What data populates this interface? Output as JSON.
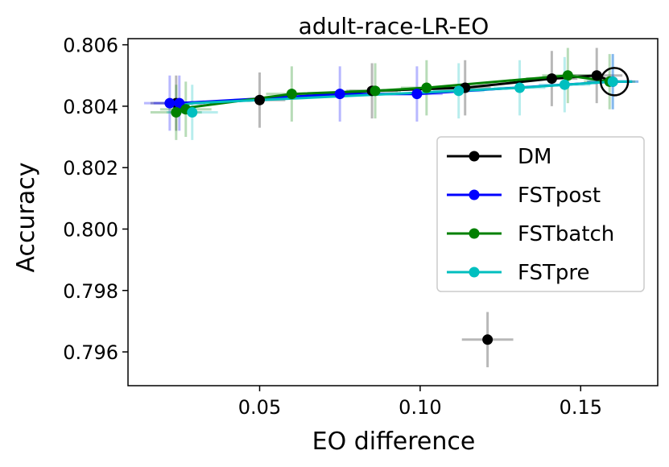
{
  "chart_data": {
    "type": "scatter",
    "title": "adult-race-LR-EO",
    "xlabel": "EO difference",
    "ylabel": "Accuracy",
    "xlim": [
      0.009,
      0.174
    ],
    "ylim": [
      0.7949,
      0.8062
    ],
    "xticks": [
      0.05,
      0.1,
      0.15
    ],
    "xtick_labels": [
      "0.05",
      "0.10",
      "0.15"
    ],
    "yticks": [
      0.796,
      0.798,
      0.8,
      0.802,
      0.804,
      0.806
    ],
    "ytick_labels": [
      "0.796",
      "0.798",
      "0.800",
      "0.802",
      "0.804",
      "0.806"
    ],
    "legend_position": "center-right",
    "series": [
      {
        "name": "DM",
        "color": "#000000",
        "points": [
          {
            "x": 0.024,
            "y": 0.8041
          },
          {
            "x": 0.05,
            "y": 0.8042
          },
          {
            "x": 0.085,
            "y": 0.8045
          },
          {
            "x": 0.114,
            "y": 0.8046
          },
          {
            "x": 0.141,
            "y": 0.8049
          },
          {
            "x": 0.155,
            "y": 0.805
          },
          {
            "x": 0.121,
            "y": 0.7964
          }
        ],
        "line": [
          [
            0.024,
            0.8041
          ],
          [
            0.05,
            0.8042
          ],
          [
            0.085,
            0.8045
          ],
          [
            0.114,
            0.8046
          ],
          [
            0.141,
            0.8049
          ],
          [
            0.155,
            0.805
          ],
          [
            0.16,
            0.8048
          ]
        ]
      },
      {
        "name": "FSTpost",
        "color": "#0000ff",
        "points": [
          {
            "x": 0.022,
            "y": 0.8041
          },
          {
            "x": 0.025,
            "y": 0.8041
          },
          {
            "x": 0.075,
            "y": 0.8044
          },
          {
            "x": 0.099,
            "y": 0.8044
          },
          {
            "x": 0.16,
            "y": 0.8048
          }
        ],
        "line": [
          [
            0.022,
            0.804
          ],
          [
            0.025,
            0.8041
          ],
          [
            0.075,
            0.8044
          ],
          [
            0.099,
            0.8044
          ],
          [
            0.16,
            0.8048
          ],
          [
            0.166,
            0.8048
          ]
        ]
      },
      {
        "name": "FSTbatch",
        "color": "#008000",
        "points": [
          {
            "x": 0.024,
            "y": 0.8038
          },
          {
            "x": 0.027,
            "y": 0.8039
          },
          {
            "x": 0.06,
            "y": 0.8044
          },
          {
            "x": 0.086,
            "y": 0.8045
          },
          {
            "x": 0.102,
            "y": 0.8046
          },
          {
            "x": 0.146,
            "y": 0.805
          },
          {
            "x": 0.159,
            "y": 0.8048
          }
        ],
        "line": [
          [
            0.024,
            0.8039
          ],
          [
            0.06,
            0.8044
          ],
          [
            0.086,
            0.8045
          ],
          [
            0.102,
            0.8046
          ],
          [
            0.146,
            0.805
          ],
          [
            0.159,
            0.8048
          ]
        ]
      },
      {
        "name": "FSTpre",
        "color": "#00bfbf",
        "points": [
          {
            "x": 0.029,
            "y": 0.8038
          },
          {
            "x": 0.112,
            "y": 0.8045
          },
          {
            "x": 0.131,
            "y": 0.8046
          },
          {
            "x": 0.145,
            "y": 0.8047
          },
          {
            "x": 0.16,
            "y": 0.8048
          }
        ],
        "line": [
          [
            0.024,
            0.804
          ],
          [
            0.029,
            0.8041
          ],
          [
            0.112,
            0.8045
          ],
          [
            0.131,
            0.8046
          ],
          [
            0.145,
            0.8047
          ],
          [
            0.16,
            0.8048
          ],
          [
            0.166,
            0.8048
          ]
        ]
      }
    ],
    "highlight": {
      "x": 0.1605,
      "y": 0.8048,
      "label": "selected point (circled)"
    },
    "error_x": 0.008,
    "error_y": 0.0009
  }
}
